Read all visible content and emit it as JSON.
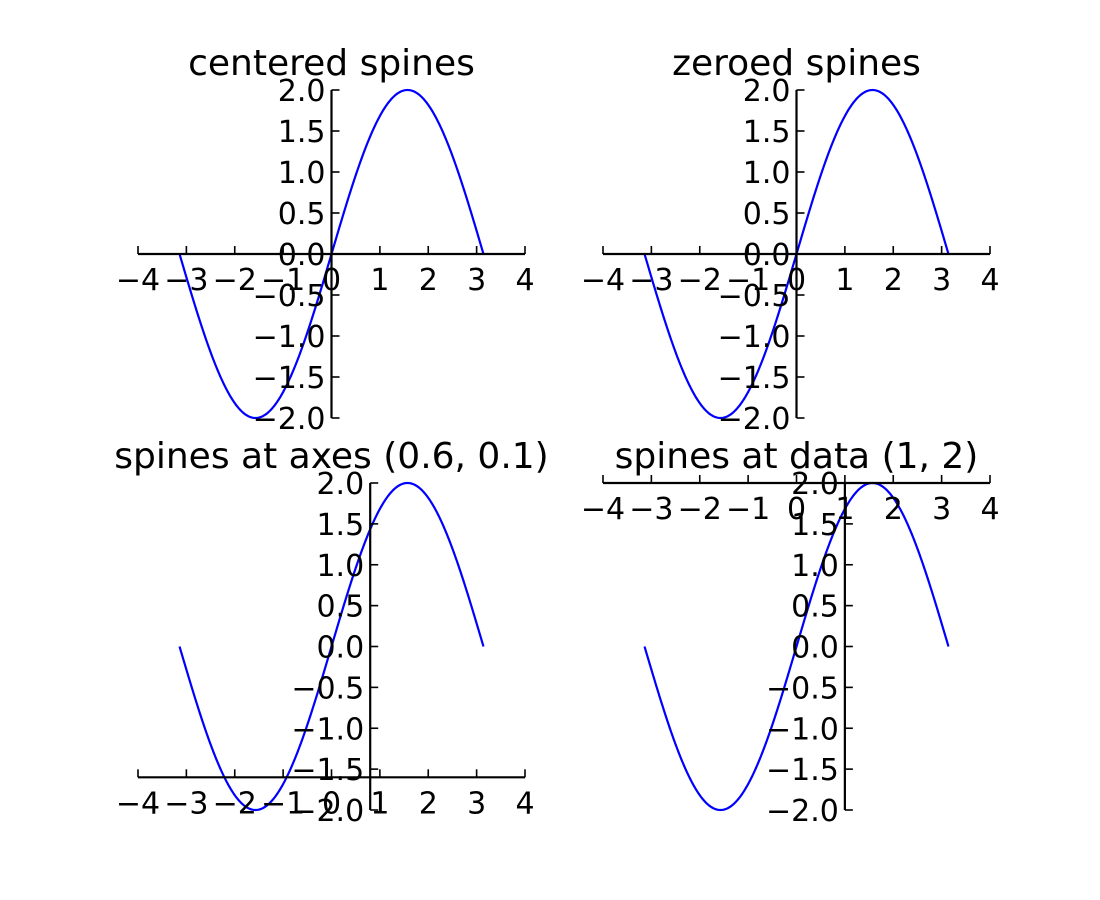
{
  "chart_data": [
    {
      "type": "line",
      "title": "centered spines",
      "xlim": [
        -4,
        4
      ],
      "ylim": [
        -2,
        2
      ],
      "xticks": [
        "−4",
        "−3",
        "−2",
        "−1",
        "0",
        "1",
        "2",
        "3",
        "4"
      ],
      "yticks": [
        "−2.0",
        "−1.5",
        "−1.0",
        "−0.5",
        "0.0",
        "0.5",
        "1.0",
        "1.5",
        "2.0"
      ],
      "spines": "axes center (0.5, 0.5)",
      "series": [
        {
          "function": "2 sin(x)",
          "x_range": [
            -3.14159,
            3.14159
          ],
          "color": "#0000ff"
        }
      ]
    },
    {
      "type": "line",
      "title": "zeroed spines",
      "xlim": [
        -4,
        4
      ],
      "ylim": [
        -2,
        2
      ],
      "xticks": [
        "−4",
        "−3",
        "−2",
        "−1",
        "0",
        "1",
        "2",
        "3",
        "4"
      ],
      "yticks": [
        "−2.0",
        "−1.5",
        "−1.0",
        "−0.5",
        "0.0",
        "0.5",
        "1.0",
        "1.5",
        "2.0"
      ],
      "spines": "data zero (0, 0)",
      "series": [
        {
          "function": "2 sin(x)",
          "x_range": [
            -3.14159,
            3.14159
          ],
          "color": "#0000ff"
        }
      ]
    },
    {
      "type": "line",
      "title": "spines at axes (0.6, 0.1)",
      "xlim": [
        -4,
        4
      ],
      "ylim": [
        -2,
        2
      ],
      "xticks": [
        "−4",
        "−3",
        "−2",
        "−1",
        "0",
        "1",
        "2",
        "3",
        "4"
      ],
      "yticks": [
        "−2.0",
        "−1.5",
        "−1.0",
        "−0.5",
        "0.0",
        "0.5",
        "1.0",
        "1.5",
        "2.0"
      ],
      "spines": "axes fraction (0.6, 0.1)",
      "series": [
        {
          "function": "2 sin(x)",
          "x_range": [
            -3.14159,
            3.14159
          ],
          "color": "#0000ff"
        }
      ]
    },
    {
      "type": "line",
      "title": "spines at data (1, 2)",
      "xlim": [
        -4,
        4
      ],
      "ylim": [
        -2,
        2
      ],
      "xticks": [
        "−4",
        "−3",
        "−2",
        "−1",
        "0",
        "1",
        "2",
        "3",
        "4"
      ],
      "yticks": [
        "−2.0",
        "−1.5",
        "−1.0",
        "−0.5",
        "0.0",
        "0.5",
        "1.0",
        "1.5",
        "2.0"
      ],
      "spines": "data coordinates (1, 2)",
      "series": [
        {
          "function": "2 sin(x)",
          "x_range": [
            -3.14159,
            3.14159
          ],
          "color": "#0000ff"
        }
      ]
    }
  ]
}
